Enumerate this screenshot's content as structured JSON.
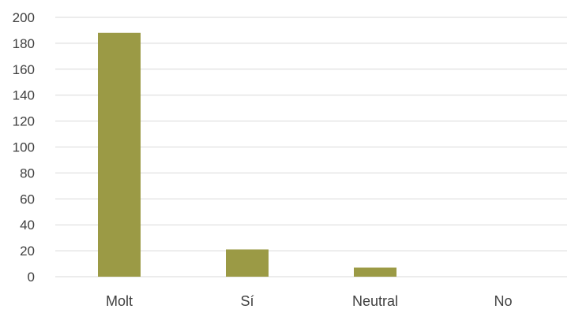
{
  "chart_data": {
    "type": "bar",
    "title": "",
    "xlabel": "",
    "ylabel": "",
    "categories": [
      "Molt",
      "Sí",
      "Neutral",
      "No"
    ],
    "values": [
      188,
      21,
      7,
      0
    ],
    "ylim": [
      0,
      200
    ],
    "y_ticks": [
      "0",
      "20",
      "40",
      "60",
      "80",
      "100",
      "120",
      "140",
      "160",
      "180",
      "200"
    ],
    "grid": true,
    "legend": "none",
    "bar_color": "#9b9a45"
  }
}
